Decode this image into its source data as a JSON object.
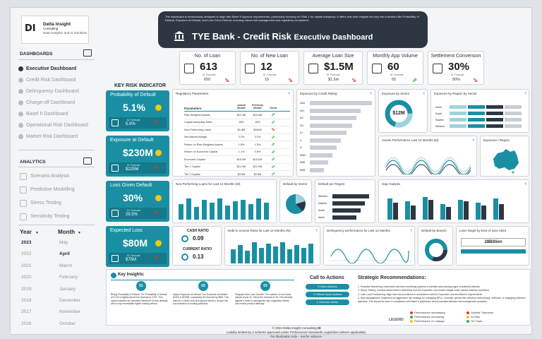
{
  "logo": {
    "mark": "DI",
    "name": "Delta Insight",
    "sub": "Consulting",
    "tagline": "Data Analytics and AI Solutions"
  },
  "sidebar": {
    "dashboards_title": "DASHBOARDS",
    "dashboards": [
      {
        "label": "Executive Dashboard",
        "active": true
      },
      {
        "label": "Credit Risk Dashboard",
        "active": false
      },
      {
        "label": "Delinquency Dashboard",
        "active": false
      },
      {
        "label": "Charge-off Dashboard",
        "active": false
      },
      {
        "label": "Basel II Dashboard",
        "active": false
      },
      {
        "label": "Operational Risk Dashboard",
        "active": false
      },
      {
        "label": "Market Risk Dashboard",
        "active": false
      }
    ],
    "analytics_title": "ANALYTICS",
    "analytics": [
      "Scenario Analysis",
      "Predictive Modelling",
      "Stress Testing",
      "Sensitivity Testing"
    ],
    "year_title": "Year",
    "month_title": "Month",
    "years": [
      "2023",
      "2022",
      "2021",
      "2020",
      "2019",
      "2018",
      "2017",
      "2016"
    ],
    "selected_year": "2023",
    "months": [
      "May",
      "April",
      "March",
      "February",
      "January",
      "December",
      "November",
      "October"
    ],
    "selected_month": "April"
  },
  "header": {
    "description": "The dashboard is meticulously designed to align with Basel II rigorous requirements, particularly focusing on Pillar 1 for capital adequacy. It offers real-time insights into key risk indicators like Probability of Default, Exposure at Default, and Loss Given Default, ensuring robust risk management and regulatory compliance.",
    "title": "TYE Bank - Credit Risk",
    "title_suffix": "Executive Dashboard"
  },
  "kpis": [
    {
      "title": "No. of Loan",
      "value": "613",
      "forecast_label": "M. Forecast",
      "forecast": "650",
      "trend": "down"
    },
    {
      "title": "No. of New Loan",
      "value": "12",
      "forecast_label": "M. Forecast",
      "forecast": "15",
      "trend": "down"
    },
    {
      "title": "Average Loan Size",
      "value": "$1.5M",
      "forecast_label": "M. Forecast",
      "forecast": "$1.5m",
      "trend": "down"
    },
    {
      "title": "Monthly App Volume",
      "value": "60",
      "forecast_label": "M. Forecast",
      "forecast": "55",
      "trend": "up"
    },
    {
      "title": "Settlement Conversion",
      "value": "30%",
      "forecast_label": "M. Forecast",
      "forecast": "50%",
      "trend": "down"
    }
  ],
  "kri": {
    "title": "KEY RISK INDICATOR",
    "cards": [
      {
        "name": "Probability of Default",
        "value": "5.1%",
        "forecast_label": "M. Forecast",
        "forecast": "5.0%",
        "status_color": "#f2c811"
      },
      {
        "name": "Exposure at Default",
        "value": "$230M",
        "forecast_label": "M. Forecast",
        "forecast": "$225M",
        "status_color": "#f2c811"
      },
      {
        "name": "Loss Given Default",
        "value": "30%",
        "forecast_label": "M. Forecast",
        "forecast": "29.5%",
        "status_color": "#f2c811"
      },
      {
        "name": "Expected Loss",
        "value": "$80M",
        "forecast_label": "M. Forecast",
        "forecast": "$75M",
        "status_color": "#f2c811"
      }
    ]
  },
  "regulatory": {
    "title": "Regulatory Parameters",
    "col_param": "Parameters",
    "col_actual": "Actual Month",
    "col_prev": "Previous Month",
    "col_trend": "Trend",
    "rows": [
      {
        "name": "Risk-Weighted Assets",
        "actual": "$21.3M",
        "prev": "$20.5M",
        "trend": "up"
      },
      {
        "name": "Capital Adequacy Ratio",
        "actual": "18%",
        "prev": "16%",
        "trend": "up"
      },
      {
        "name": "Non-Performing Loans",
        "actual": "$1.8M",
        "prev": "$160M",
        "trend": "down"
      },
      {
        "name": "Net Interest Margin",
        "actual": "3.2%",
        "prev": "3.0%",
        "trend": "up"
      },
      {
        "name": "Return on Risk-Weighted Assets",
        "actual": "1.8%",
        "prev": "1.5%",
        "trend": "up"
      },
      {
        "name": "Return on Economic Capital",
        "actual": "1.1%",
        "prev": "0.8%",
        "trend": "up"
      },
      {
        "name": "Economic Capital",
        "actual": "$15.4M",
        "prev": "$15.0M",
        "trend": "up"
      },
      {
        "name": "Tier 1 Capital",
        "actual": "$12.4M",
        "prev": "$12.0M",
        "trend": "up"
      },
      {
        "name": "Tier 2 Capital",
        "actual": "$3.0M",
        "prev": "$2.8M",
        "trend": "up"
      }
    ]
  },
  "panels": {
    "exposure_rating": "Exposure by Credit Rating",
    "exposure_rating_cats": [
      "AAA",
      "AA+",
      "AA",
      "AA-",
      "A+",
      "A",
      "A-",
      "BBB+",
      "BBB",
      "BBB-"
    ],
    "exposure_sector": "Exposure by Sector",
    "exposure_sector_value": "$12M",
    "exposure_region_sector": "Exposure by Region by Sector",
    "region_names": [
      "North",
      "South",
      "Eastern",
      "Western"
    ],
    "asset_perf": "Assets Performance Last 12 Months (M)",
    "exposure_region": "Exposure / Region",
    "npl": "Non Performing Loans for Last 12 Months (M)",
    "default_sector": "Default by Sector",
    "default_region": "Default per Region",
    "default_region_names": [
      "Western",
      "Eastern",
      "South",
      "North"
    ],
    "gap": "Gap Analysis",
    "cash_ratio_title": "CASH RATIO",
    "cash_ratio": "0.09",
    "current_ratio_title": "CURRENT RATIO",
    "current_ratio": "0.13",
    "debt_income": "Debt to Income Ratio for Last 12 Months (M)",
    "delinquency": "Delinquency performance for Last 12 Months",
    "default_branch": "Default by Branch",
    "loan_target": "Loan Target by End of June 2024",
    "loan_target_value": "28Billion"
  },
  "insights": {
    "label": "Key Insights:",
    "items": [
      {
        "num": "01",
        "text": "Rising Probability of Default: The Probability of Default at 5.1% is slightly above the forecast of 5.0%. This uptick indicates an increased likelihood of loan defaults, which may necessitate tighter lending criteria."
      },
      {
        "num": "02",
        "text": "Higher Exposure at Default: The Exposure at Default (EAD) is $230M, surpassing the forecast by $5M. This calls for a closer look at exposure limits to reduce risk concentration in lending portfolios."
      },
      {
        "num": "03",
        "text": "Stagnant New Loan Growth: The number of new loans stands at just 12, below the forecast of 15. This shortfall signals a need to reinvigorate loan origination efforts and review product offerings."
      }
    ]
  },
  "cta": {
    "title": "Call to Actions",
    "buttons": [
      "5 Open Actions",
      "2 Critical Open Actions",
      "1 Overdue Action"
    ]
  },
  "strategic": {
    "title": "Strategic Recommendations:",
    "items": [
      "1. Proactive Monitoring: Implement real-time monitoring systems to identify early warning signs of potential defaults.",
      "2. Stress Testing: Conduct stress tests to determine how the Expected Loss would change under various adverse conditions.",
      "3. Loan Loss Provisioning: Align loan loss provisions in accordance with the Expected Loss and Basel II requirements.",
      "4. Risk Management: Implement an aggressive risk strategy for managing NPLs. Consider options like selective restructuring, workouts, or engaging collection agencies. This should be done in compliance with Basel II guidelines, which mandate effective risk management practices."
    ]
  },
  "legend": {
    "title": "LEGEND",
    "items": [
      {
        "label": "Performance decreasing",
        "color": "#d93a2b"
      },
      {
        "label": "Performance increasing",
        "color": "#3aa84b"
      },
      {
        "label": "Performance no change",
        "color": "#f2c811"
      },
      {
        "label": "Outside Tolerance",
        "color": "#d93a2b"
      },
      {
        "label": "At Risk",
        "color": "#f2c811"
      },
      {
        "label": "On Track",
        "color": "#3aa84b"
      }
    ]
  },
  "footer": {
    "line1": "© 2024 Delta Insight Consulting",
    "line1_mark": "DI",
    "line2": "Liability limited by a scheme approved under Professional Standards Legislation (where applicable).",
    "line3": "For illustration only – not for reliance."
  }
}
